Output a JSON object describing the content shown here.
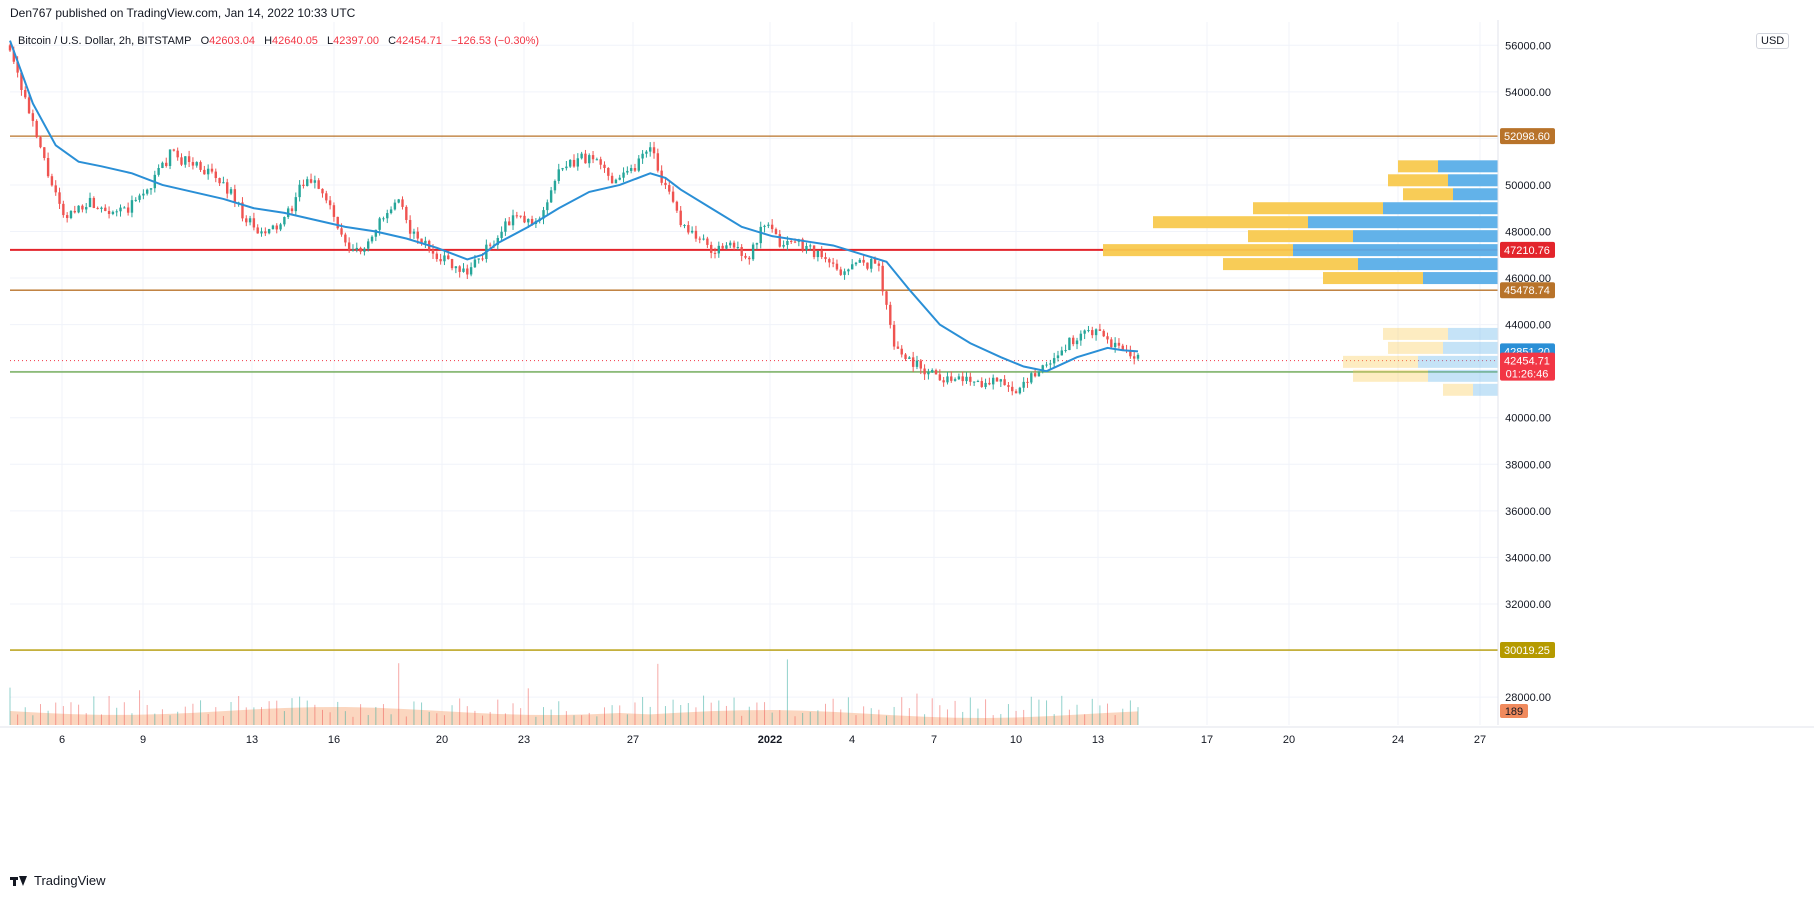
{
  "header": {
    "published": "Den767 published on TradingView.com, Jan 14, 2022 10:33 UTC"
  },
  "symbol": {
    "name": "Bitcoin / U.S. Dollar, 2h, BITSTAMP",
    "o_label": "O",
    "o_value": "42603.04",
    "h_label": "H",
    "h_value": "42640.05",
    "l_label": "L",
    "l_value": "42397.00",
    "c_label": "C",
    "c_value": "42454.71",
    "change": "−126.53 (−0.30%)"
  },
  "currency": "USD",
  "footer": {
    "brand": "TradingView"
  },
  "colors": {
    "up": "#26a69a",
    "down": "#ef5350",
    "ma": "#2a8fd6",
    "resistance": "#b8732a",
    "red_level": "#e3242b",
    "support": "#6aa84f",
    "gold": "#b59a00",
    "vp_up": "#f8c94e",
    "vp_down": "#5aaee8",
    "volume": "#f7b58a"
  },
  "chart_data": {
    "type": "candlestick",
    "title": "Bitcoin / U.S. Dollar, 2h, BITSTAMP",
    "y_axis": {
      "min": 26800,
      "max": 57000,
      "ticks": [
        28000,
        30000,
        32000,
        34000,
        36000,
        38000,
        40000,
        42000,
        44000,
        46000,
        48000,
        50000,
        52000,
        54000,
        56000
      ],
      "tick_labels": [
        "28000.00",
        "30000.00",
        "32000.00",
        "34000.00",
        "36000.00",
        "38000.00",
        "40000.00",
        "42000.00",
        "44000.00",
        "46000.00",
        "48000.00",
        "50000.00",
        "52000.00",
        "54000.00",
        "56000.00"
      ]
    },
    "x_axis": {
      "labels": [
        "6",
        "9",
        "13",
        "16",
        "20",
        "23",
        "27",
        "2022",
        "4",
        "7",
        "10",
        "13",
        "17",
        "20",
        "24",
        "27"
      ],
      "bold_label": "2022"
    },
    "price_path": [
      [
        0,
        56000
      ],
      [
        3,
        52500
      ],
      [
        7,
        48500
      ],
      [
        10,
        49300
      ],
      [
        15,
        48800
      ],
      [
        18,
        49800
      ],
      [
        21,
        51300
      ],
      [
        25,
        50800
      ],
      [
        29,
        49700
      ],
      [
        31,
        48500
      ],
      [
        33,
        47800
      ],
      [
        36,
        48400
      ],
      [
        38,
        49800
      ],
      [
        40,
        50300
      ],
      [
        42,
        49000
      ],
      [
        44,
        47300
      ],
      [
        46,
        47100
      ],
      [
        48,
        48200
      ],
      [
        51,
        49200
      ],
      [
        53,
        47800
      ],
      [
        55,
        47300
      ],
      [
        57,
        46800
      ],
      [
        60,
        46300
      ],
      [
        63,
        47400
      ],
      [
        66,
        48600
      ],
      [
        69,
        48300
      ],
      [
        72,
        50500
      ],
      [
        75,
        51200
      ],
      [
        77,
        51000
      ],
      [
        79,
        50300
      ],
      [
        82,
        50800
      ],
      [
        84,
        51800
      ],
      [
        86,
        49800
      ],
      [
        88,
        48500
      ],
      [
        90,
        47800
      ],
      [
        92,
        47200
      ],
      [
        95,
        47400
      ],
      [
        97,
        46900
      ],
      [
        99,
        48300
      ],
      [
        101,
        47500
      ],
      [
        103,
        47600
      ],
      [
        105,
        47300
      ],
      [
        107,
        46700
      ],
      [
        109,
        46300
      ],
      [
        112,
        46700
      ],
      [
        114,
        46500
      ],
      [
        116,
        43100
      ],
      [
        118,
        42500
      ],
      [
        120,
        42100
      ],
      [
        122,
        41800
      ],
      [
        124,
        41600
      ],
      [
        126,
        41700
      ],
      [
        128,
        41500
      ],
      [
        130,
        41800
      ],
      [
        132,
        40800
      ],
      [
        134,
        41900
      ],
      [
        136,
        42300
      ],
      [
        139,
        43200
      ],
      [
        141,
        43700
      ],
      [
        143,
        43500
      ],
      [
        145,
        43100
      ],
      [
        147,
        42600
      ],
      [
        148,
        42455
      ]
    ],
    "ma_path": [
      [
        0,
        56200
      ],
      [
        3,
        53500
      ],
      [
        6,
        51700
      ],
      [
        9,
        51000
      ],
      [
        12,
        50800
      ],
      [
        16,
        50500
      ],
      [
        20,
        50000
      ],
      [
        24,
        49700
      ],
      [
        28,
        49400
      ],
      [
        32,
        49000
      ],
      [
        36,
        48800
      ],
      [
        40,
        48500
      ],
      [
        44,
        48200
      ],
      [
        48,
        48000
      ],
      [
        52,
        47700
      ],
      [
        56,
        47300
      ],
      [
        60,
        46800
      ],
      [
        62,
        47000
      ],
      [
        64,
        47500
      ],
      [
        68,
        48200
      ],
      [
        72,
        49000
      ],
      [
        76,
        49700
      ],
      [
        80,
        50000
      ],
      [
        84,
        50500
      ],
      [
        86,
        50300
      ],
      [
        88,
        49800
      ],
      [
        92,
        49000
      ],
      [
        96,
        48200
      ],
      [
        100,
        47800
      ],
      [
        104,
        47600
      ],
      [
        108,
        47400
      ],
      [
        112,
        47000
      ],
      [
        115,
        46700
      ],
      [
        118,
        45500
      ],
      [
        122,
        44000
      ],
      [
        126,
        43200
      ],
      [
        130,
        42600
      ],
      [
        133,
        42200
      ],
      [
        136,
        42000
      ],
      [
        138,
        42300
      ],
      [
        140,
        42600
      ],
      [
        142,
        42800
      ],
      [
        144,
        43000
      ],
      [
        146,
        42900
      ],
      [
        148,
        42851
      ]
    ],
    "horizontal_levels": [
      {
        "value": 52098.6,
        "label": "52098.60",
        "color": "#b8732a"
      },
      {
        "value": 47210.76,
        "label": "47210.76",
        "color": "#e3242b"
      },
      {
        "value": 45478.74,
        "label": "45478.74",
        "color": "#b8732a"
      },
      {
        "value": 41967.5,
        "label": "41967.50",
        "color": "#6aa84f"
      },
      {
        "value": 30019.25,
        "label": "30019.25",
        "color": "#b59a00"
      }
    ],
    "price_labels": [
      {
        "value": 42851.2,
        "label": "42851.20",
        "color": "#2a8fd6"
      },
      {
        "value": 42454.71,
        "label": "42454.71",
        "sub": "01:26:46",
        "color": "#f23645"
      }
    ],
    "volume_label": "189",
    "volume_profile": [
      {
        "price": 50800,
        "up": 40,
        "down": 60
      },
      {
        "price": 50200,
        "up": 60,
        "down": 50
      },
      {
        "price": 49600,
        "up": 50,
        "down": 45
      },
      {
        "price": 49000,
        "up": 130,
        "down": 115
      },
      {
        "price": 48400,
        "up": 155,
        "down": 190
      },
      {
        "price": 47800,
        "up": 105,
        "down": 145
      },
      {
        "price": 47200,
        "up": 190,
        "down": 205
      },
      {
        "price": 46600,
        "up": 135,
        "down": 140
      },
      {
        "price": 46000,
        "up": 100,
        "down": 75
      },
      {
        "price": 43600,
        "up": 65,
        "down": 50
      },
      {
        "price": 43000,
        "up": 55,
        "down": 55
      },
      {
        "price": 42400,
        "up": 75,
        "down": 80
      },
      {
        "price": 41800,
        "up": 75,
        "down": 70
      },
      {
        "price": 41200,
        "up": 30,
        "down": 25
      }
    ]
  }
}
